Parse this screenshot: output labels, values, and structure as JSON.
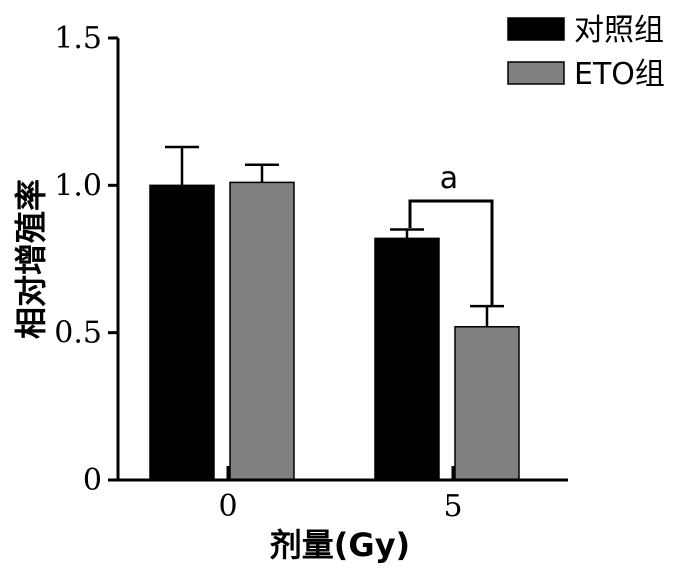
{
  "chart_data": {
    "type": "bar",
    "categories": [
      "0",
      "5"
    ],
    "xlabel": "剂量(Gy)",
    "ylabel": "相对增殖率",
    "ylim": [
      0,
      1.5
    ],
    "yticks": [
      "0",
      "0.5",
      "1.0",
      "1.5"
    ],
    "series": [
      {
        "name": "对照组",
        "color": "#000000",
        "values": [
          1.0,
          0.82
        ],
        "errors": [
          0.13,
          0.03
        ]
      },
      {
        "name": "ETO组",
        "color": "#808080",
        "values": [
          1.01,
          0.52
        ],
        "errors": [
          0.06,
          0.07
        ]
      }
    ],
    "annotations": [
      {
        "text": "a",
        "category": "5"
      }
    ],
    "legend": "top-right"
  }
}
